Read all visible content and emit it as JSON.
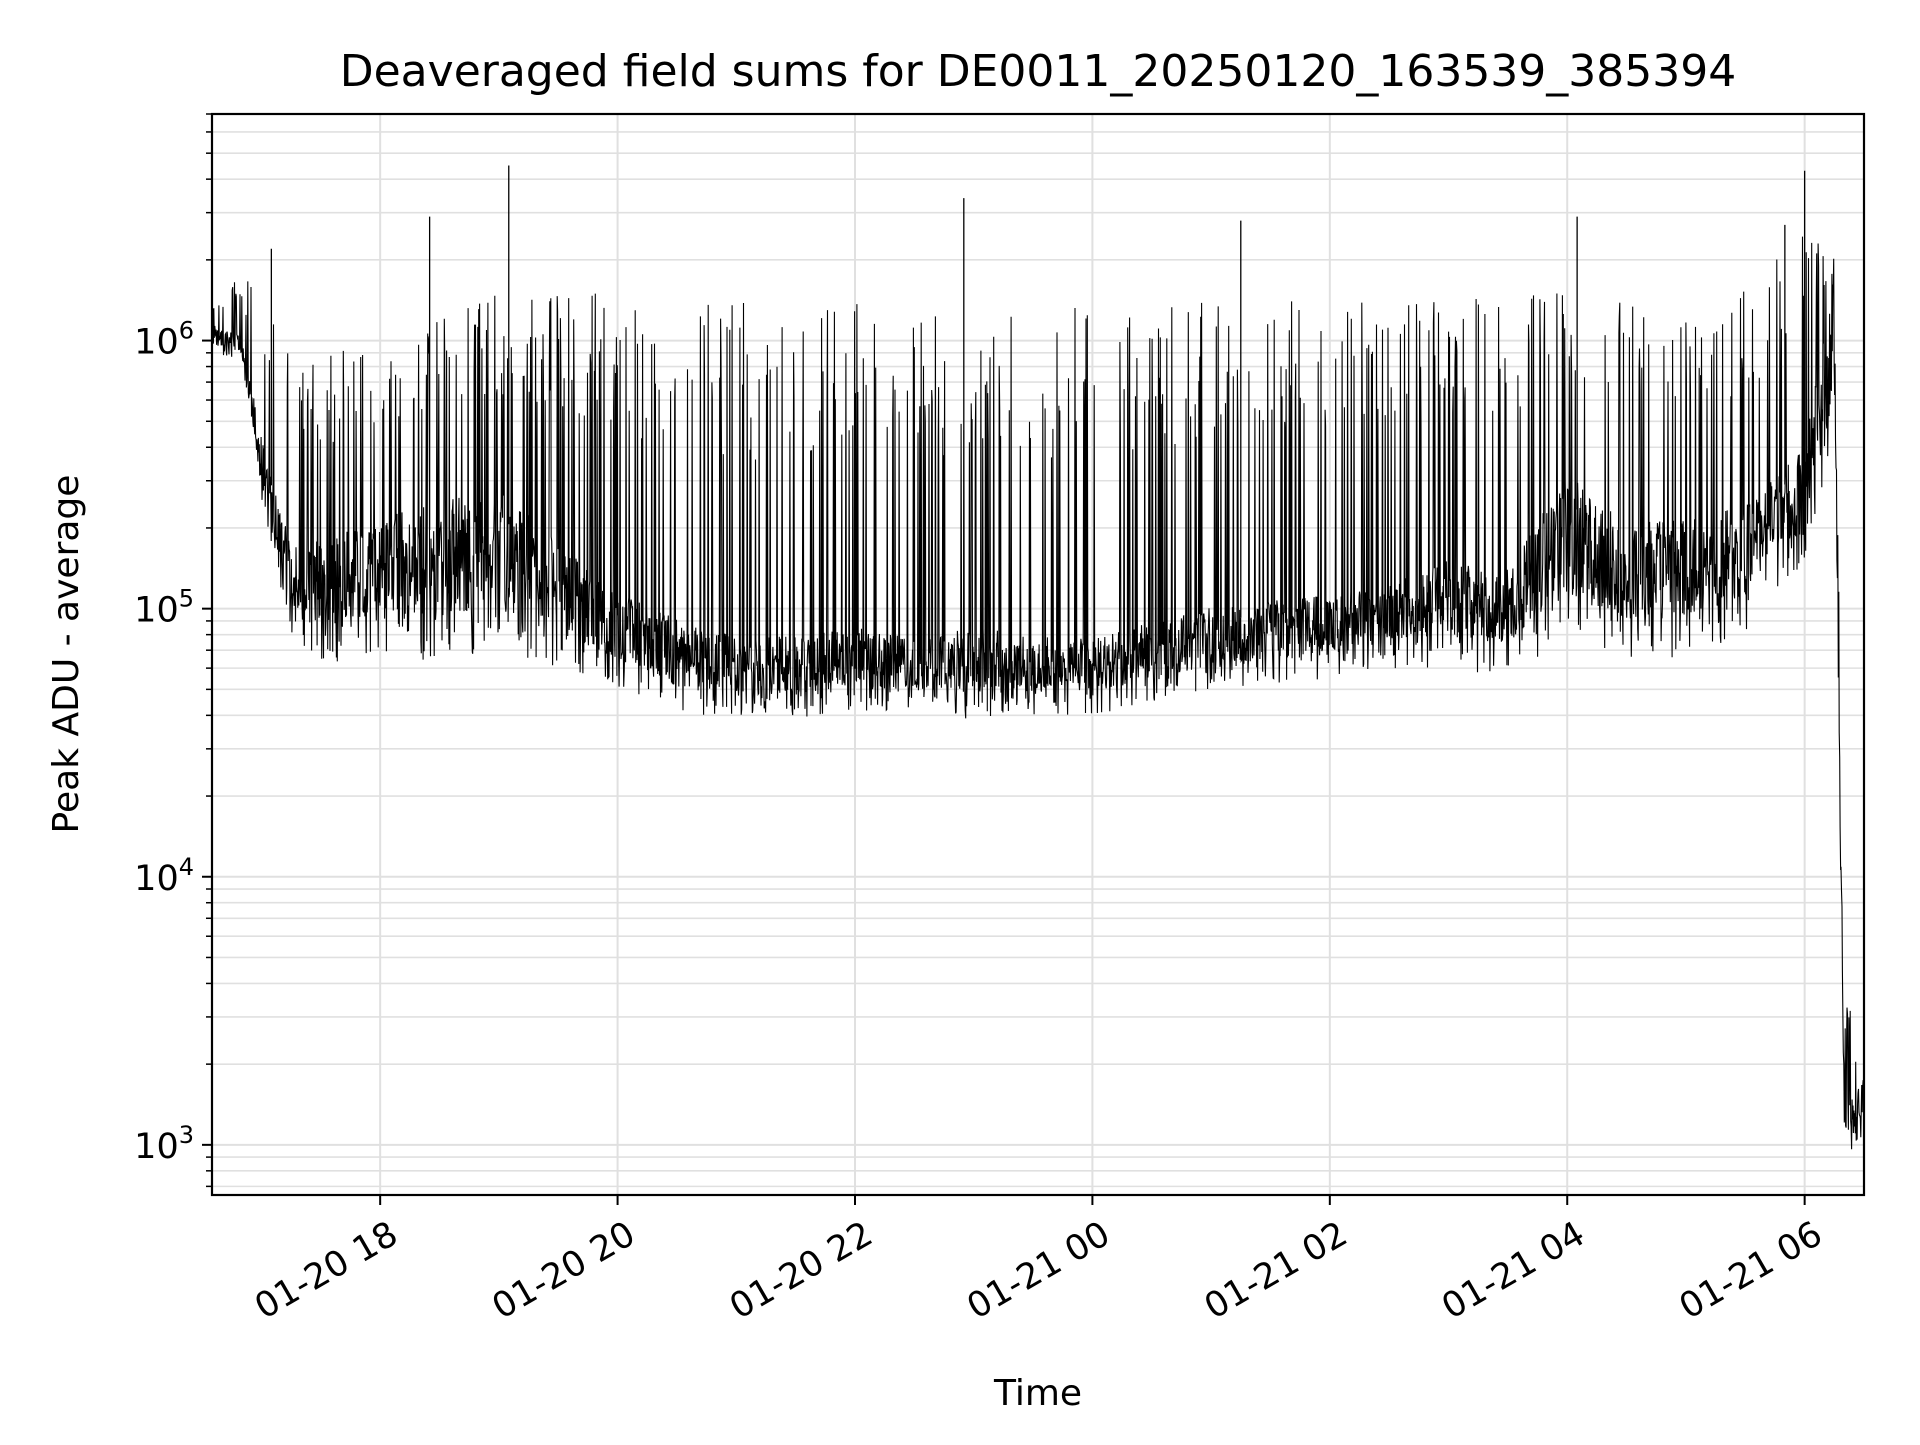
{
  "chart_data": {
    "type": "line",
    "title": "Deaveraged field sums for DE0011_20250120_163539_385394",
    "xlabel": "Time",
    "ylabel": "Peak ADU - average",
    "yscale": "log",
    "ylim": [
      650,
      7000000
    ],
    "xlim": [
      "2025-01-20 16:35",
      "2025-01-21 06:30"
    ],
    "grid": true,
    "line_color": "#000000",
    "grid_color": "#e0e0e0",
    "x_ticks": [
      {
        "t": "2025-01-20 18:00",
        "label": "01-20 18"
      },
      {
        "t": "2025-01-20 20:00",
        "label": "01-20 20"
      },
      {
        "t": "2025-01-20 22:00",
        "label": "01-20 22"
      },
      {
        "t": "2025-01-21 00:00",
        "label": "01-21 00"
      },
      {
        "t": "2025-01-21 02:00",
        "label": "01-21 02"
      },
      {
        "t": "2025-01-21 04:00",
        "label": "01-21 04"
      },
      {
        "t": "2025-01-21 06:00",
        "label": "01-21 06"
      }
    ],
    "y_ticks": [
      {
        "value": 1000,
        "base": "10",
        "exp": "3"
      },
      {
        "value": 10000,
        "base": "10",
        "exp": "4"
      },
      {
        "value": 100000,
        "base": "10",
        "exp": "5"
      },
      {
        "value": 1000000,
        "base": "10",
        "exp": "6"
      }
    ],
    "series": [
      {
        "x": [
          "2025-01-20 16:36",
          "2025-01-20 16:50",
          "2025-01-20 17:00",
          "2025-01-20 17:15",
          "2025-01-20 17:30",
          "2025-01-20 18:00",
          "2025-01-20 18:30",
          "2025-01-20 19:00",
          "2025-01-20 19:30",
          "2025-01-20 20:00",
          "2025-01-20 20:30",
          "2025-01-20 21:00",
          "2025-01-20 21:30",
          "2025-01-20 22:00",
          "2025-01-20 22:30",
          "2025-01-20 23:00",
          "2025-01-20 23:30",
          "2025-01-21 00:00",
          "2025-01-21 00:30",
          "2025-01-21 01:00",
          "2025-01-21 01:30",
          "2025-01-21 02:00",
          "2025-01-21 02:30",
          "2025-01-21 03:00",
          "2025-01-21 03:30",
          "2025-01-21 04:00",
          "2025-01-21 04:30",
          "2025-01-21 05:00",
          "2025-01-21 05:30",
          "2025-01-21 06:00",
          "2025-01-21 06:15",
          "2025-01-21 06:20",
          "2025-01-21 06:25",
          "2025-01-21 06:30"
        ],
        "y_low": [
          900000,
          850000,
          250000,
          80000,
          60000,
          70000,
          60000,
          70000,
          60000,
          50000,
          40000,
          40000,
          38000,
          40000,
          42000,
          38000,
          40000,
          40000,
          45000,
          50000,
          52000,
          55000,
          60000,
          60000,
          55000,
          75000,
          65000,
          65000,
          80000,
          150000,
          400000,
          1000,
          950,
          1100
        ],
        "y_mid": [
          1100000,
          1000000,
          400000,
          150000,
          150000,
          180000,
          200000,
          220000,
          150000,
          100000,
          80000,
          70000,
          70000,
          75000,
          70000,
          75000,
          70000,
          70000,
          80000,
          90000,
          95000,
          100000,
          110000,
          130000,
          120000,
          250000,
          170000,
          180000,
          200000,
          350000,
          1400000,
          1500,
          1400,
          1700
        ],
        "y_high": [
          1400000,
          1800000,
          1500000,
          900000,
          900000,
          1000000,
          1200000,
          1500000,
          1500000,
          1500000,
          1400000,
          1400000,
          1300000,
          1400000,
          1300000,
          1300000,
          1400000,
          1400000,
          1400000,
          1500000,
          1500000,
          1500000,
          1500000,
          1500000,
          1500000,
          1500000,
          1400000,
          1400000,
          1600000,
          2500000,
          2200000,
          4300,
          2600,
          2500
        ]
      }
    ],
    "peaks": [
      {
        "t": "2025-01-20 17:05",
        "value": 2200000
      },
      {
        "t": "2025-01-20 18:25",
        "value": 2900000
      },
      {
        "t": "2025-01-20 19:05",
        "value": 4500000
      },
      {
        "t": "2025-01-20 22:55",
        "value": 3400000
      },
      {
        "t": "2025-01-21 01:15",
        "value": 2800000
      },
      {
        "t": "2025-01-21 04:05",
        "value": 2900000
      },
      {
        "t": "2025-01-21 05:50",
        "value": 2700000
      },
      {
        "t": "2025-01-21 06:00",
        "value": 4300000
      }
    ]
  }
}
